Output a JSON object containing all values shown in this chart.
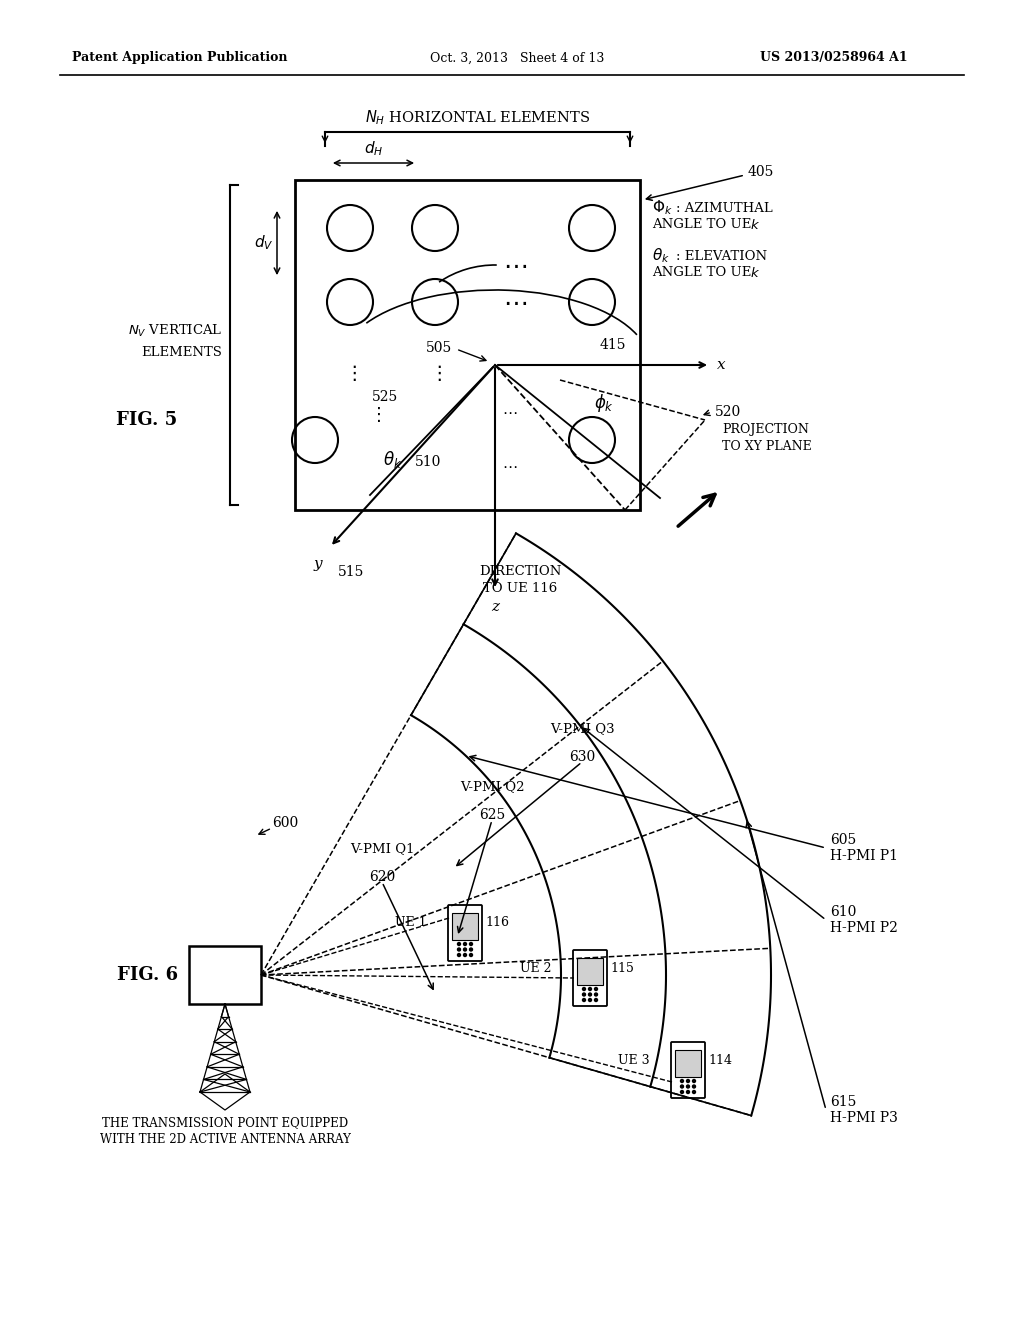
{
  "bg_color": "#ffffff",
  "header_left": "Patent Application Publication",
  "header_center": "Oct. 3, 2013   Sheet 4 of 13",
  "header_right": "US 2013/0258964 A1",
  "fig5_label": "FIG. 5",
  "fig6_label": "FIG. 6",
  "line_color": "#000000"
}
